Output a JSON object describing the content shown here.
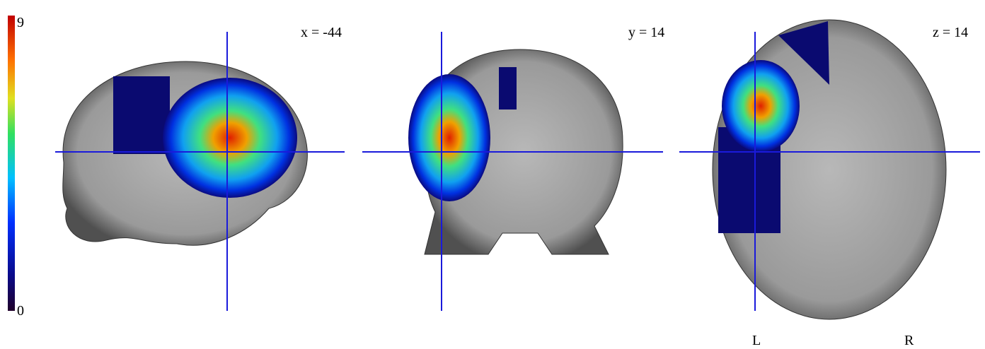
{
  "colorbar": {
    "max_label": "9",
    "min_label": "0"
  },
  "slices": [
    {
      "label": "x = -44"
    },
    {
      "label": "y = 14"
    },
    {
      "label": "z = 14"
    }
  ],
  "orientation": {
    "left": "L",
    "right": "R"
  }
}
